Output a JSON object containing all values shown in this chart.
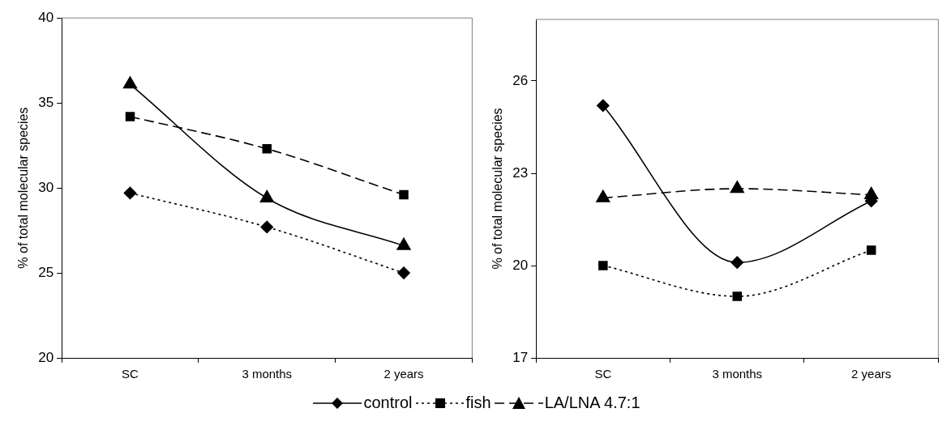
{
  "chart_data": [
    {
      "type": "line",
      "ylabel": "% of total molecular species",
      "categories": [
        "SC",
        "3 months",
        "2 years"
      ],
      "ylim": [
        20,
        40
      ],
      "yticks": [
        20,
        25,
        30,
        35,
        40
      ],
      "grid": false,
      "series": [
        {
          "color": "#000000",
          "marker": "diamond",
          "line_style": "dotted",
          "values": [
            29.7,
            27.7,
            25.0
          ]
        },
        {
          "color": "#000000",
          "marker": "square",
          "line_style": "dashed",
          "values": [
            34.2,
            32.3,
            29.6
          ]
        },
        {
          "color": "#000000",
          "marker": "triangle",
          "line_style": "solid",
          "values": [
            36.1,
            29.4,
            26.6
          ]
        }
      ]
    },
    {
      "type": "line",
      "ylabel": "% of total molecular species",
      "categories": [
        "SC",
        "3 months",
        "2 years"
      ],
      "ylim": [
        17,
        28
      ],
      "yticks": [
        17,
        20,
        23,
        26
      ],
      "grid": false,
      "legend": "bottom",
      "series": [
        {
          "name": "control",
          "color": "#000000",
          "marker": "diamond",
          "line_style": "solid",
          "values": [
            25.2,
            20.1,
            22.1
          ]
        },
        {
          "name": "fish",
          "color": "#000000",
          "marker": "square",
          "line_style": "dotted",
          "values": [
            20.0,
            19.0,
            20.5
          ]
        },
        {
          "name": "LA/LNA 4.7:1",
          "color": "#000000",
          "marker": "triangle",
          "line_style": "dashed",
          "values": [
            22.2,
            22.5,
            22.3
          ]
        }
      ]
    }
  ]
}
